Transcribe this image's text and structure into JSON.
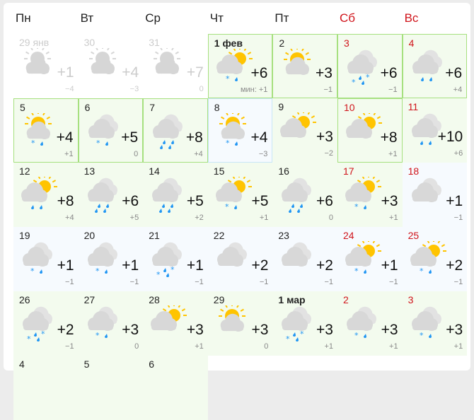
{
  "weekdays": [
    {
      "label": "Пн",
      "weekend": false
    },
    {
      "label": "Вт",
      "weekend": false
    },
    {
      "label": "Ср",
      "weekend": false
    },
    {
      "label": "Чт",
      "weekend": false
    },
    {
      "label": "Пт",
      "weekend": false
    },
    {
      "label": "Сб",
      "weekend": true
    },
    {
      "label": "Вс",
      "weekend": true
    }
  ],
  "colors": {
    "weekend": "#d0141b",
    "sun": "#ffc400",
    "cloud": "#d8d8d8",
    "precip": "#2196f3",
    "warm_bg": "#f3fbee",
    "cold_bg": "#f6fafe",
    "border_green": "#a6e07f"
  },
  "days": [
    {
      "label": "29 янв",
      "icon": "partly-cloudy",
      "precip": "none",
      "temp": "+1",
      "min": "−4",
      "past": true
    },
    {
      "label": "30",
      "icon": "partly-cloudy",
      "precip": "none",
      "temp": "+4",
      "min": "−3",
      "past": true
    },
    {
      "label": "31",
      "icon": "partly-cloudy",
      "precip": "none",
      "temp": "+7",
      "min": "0",
      "past": true
    },
    {
      "label": "1 фев",
      "bold": true,
      "icon": "cloud-sun",
      "precip": "snow-rain",
      "temp": "+6",
      "min": "мин: +1",
      "bg": "warm",
      "border": "green"
    },
    {
      "label": "2",
      "icon": "partly-cloudy",
      "precip": "none",
      "temp": "+3",
      "min": "−1",
      "bg": "warm",
      "border": "green"
    },
    {
      "label": "3",
      "weekend": true,
      "icon": "overcast",
      "precip": "mixed",
      "temp": "+6",
      "min": "−1",
      "bg": "warm",
      "border": "green"
    },
    {
      "label": "4",
      "weekend": true,
      "icon": "overcast",
      "precip": "rain",
      "temp": "+6",
      "min": "+4",
      "bg": "warm",
      "border": "green"
    },
    {
      "label": "5",
      "icon": "partly-cloudy",
      "precip": "snow-rain",
      "temp": "+4",
      "min": "+1",
      "bg": "warm",
      "border": "green"
    },
    {
      "label": "6",
      "icon": "overcast",
      "precip": "snow-rain",
      "temp": "+5",
      "min": "0",
      "bg": "warm",
      "border": "green"
    },
    {
      "label": "7",
      "icon": "overcast",
      "precip": "heavy-rain",
      "temp": "+8",
      "min": "+4",
      "bg": "warm",
      "border": "green"
    },
    {
      "label": "8",
      "icon": "partly-cloudy",
      "precip": "snow-rain",
      "temp": "+4",
      "min": "−3",
      "bg": "cold",
      "border": "blue"
    },
    {
      "label": "9",
      "icon": "cloud-sun",
      "precip": "none",
      "temp": "+3",
      "min": "−2",
      "bg": "warm"
    },
    {
      "label": "10",
      "weekend": true,
      "icon": "cloud-sun",
      "precip": "none",
      "temp": "+8",
      "min": "+1",
      "bg": "warm",
      "border": "green"
    },
    {
      "label": "11",
      "weekend": true,
      "icon": "overcast",
      "precip": "rain",
      "temp": "+10",
      "min": "+6",
      "bg": "warm"
    },
    {
      "label": "12",
      "icon": "cloud-sun",
      "precip": "rain",
      "temp": "+8",
      "min": "+4",
      "bg": "warm"
    },
    {
      "label": "13",
      "icon": "overcast",
      "precip": "heavy-rain",
      "temp": "+6",
      "min": "+5",
      "bg": "warm"
    },
    {
      "label": "14",
      "icon": "overcast",
      "precip": "heavy-rain",
      "temp": "+5",
      "min": "+2",
      "bg": "warm"
    },
    {
      "label": "15",
      "icon": "cloud-sun",
      "precip": "snow-rain",
      "temp": "+5",
      "min": "+1",
      "bg": "warm"
    },
    {
      "label": "16",
      "icon": "overcast",
      "precip": "heavy-rain",
      "temp": "+6",
      "min": "0",
      "bg": "warm"
    },
    {
      "label": "17",
      "weekend": true,
      "icon": "cloud-sun",
      "precip": "snow-rain",
      "temp": "+3",
      "min": "+1",
      "bg": "warm"
    },
    {
      "label": "18",
      "weekend": true,
      "icon": "overcast",
      "precip": "none",
      "temp": "+1",
      "min": "−1",
      "bg": "cold"
    },
    {
      "label": "19",
      "icon": "overcast",
      "precip": "snow-rain",
      "temp": "+1",
      "min": "−1",
      "bg": "cold"
    },
    {
      "label": "20",
      "icon": "overcast",
      "precip": "snow-rain",
      "temp": "+1",
      "min": "−1",
      "bg": "cold"
    },
    {
      "label": "21",
      "icon": "overcast",
      "precip": "mixed",
      "temp": "+1",
      "min": "−1",
      "bg": "cold"
    },
    {
      "label": "22",
      "icon": "overcast",
      "precip": "none",
      "temp": "+2",
      "min": "−1",
      "bg": "cold"
    },
    {
      "label": "23",
      "icon": "overcast",
      "precip": "none",
      "temp": "+2",
      "min": "−1",
      "bg": "cold"
    },
    {
      "label": "24",
      "weekend": true,
      "icon": "cloud-sun",
      "precip": "snow-rain",
      "temp": "+1",
      "min": "−1",
      "bg": "cold"
    },
    {
      "label": "25",
      "weekend": true,
      "icon": "cloud-sun",
      "precip": "snow-rain",
      "temp": "+2",
      "min": "−1",
      "bg": "cold"
    },
    {
      "label": "26",
      "icon": "overcast",
      "precip": "mixed",
      "temp": "+2",
      "min": "−1",
      "bg": "warm"
    },
    {
      "label": "27",
      "icon": "overcast",
      "precip": "snow-rain",
      "temp": "+3",
      "min": "0",
      "bg": "warm"
    },
    {
      "label": "28",
      "icon": "cloud-sun",
      "precip": "none",
      "temp": "+3",
      "min": "+1",
      "bg": "warm"
    },
    {
      "label": "29",
      "icon": "partly-cloudy",
      "precip": "none",
      "temp": "+3",
      "min": "0",
      "bg": "warm"
    },
    {
      "label": "1 мар",
      "bold": true,
      "icon": "overcast",
      "precip": "mixed",
      "temp": "+3",
      "min": "+1",
      "bg": "warm"
    },
    {
      "label": "2",
      "weekend": true,
      "icon": "overcast",
      "precip": "snow-rain",
      "temp": "+3",
      "min": "+1",
      "bg": "warm"
    },
    {
      "label": "3",
      "weekend": true,
      "icon": "overcast",
      "precip": "snow-rain",
      "temp": "+3",
      "min": "+1",
      "bg": "warm"
    },
    {
      "label": "4",
      "bg": "warm"
    },
    {
      "label": "5",
      "bg": "warm"
    },
    {
      "label": "6",
      "bg": "warm"
    }
  ]
}
